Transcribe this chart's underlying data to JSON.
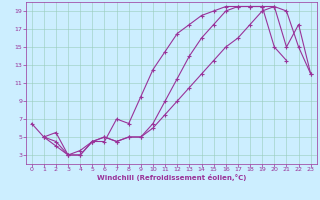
{
  "xlabel": "Windchill (Refroidissement éolien,°C)",
  "bg_color": "#cceeff",
  "grid_color": "#99ccbb",
  "line_color": "#993399",
  "xlim": [
    -0.5,
    23.5
  ],
  "ylim": [
    2,
    20
  ],
  "xticks": [
    0,
    1,
    2,
    3,
    4,
    5,
    6,
    7,
    8,
    9,
    10,
    11,
    12,
    13,
    14,
    15,
    16,
    17,
    18,
    19,
    20,
    21,
    22,
    23
  ],
  "yticks": [
    3,
    5,
    7,
    9,
    11,
    13,
    15,
    17,
    19
  ],
  "line1_x": [
    0,
    1,
    2,
    3,
    4,
    5,
    6,
    7,
    8,
    9,
    10,
    11,
    12,
    13,
    14,
    15,
    16,
    17,
    18,
    19,
    20,
    21
  ],
  "line1_y": [
    6.5,
    5.0,
    4.0,
    3.0,
    3.0,
    4.5,
    4.5,
    7.0,
    6.5,
    9.5,
    12.5,
    14.5,
    16.5,
    17.5,
    18.5,
    19.0,
    19.5,
    19.5,
    19.5,
    19.5,
    15.0,
    13.5
  ],
  "line2_x": [
    1,
    2,
    3,
    4,
    5,
    6,
    7,
    8,
    9,
    10,
    11,
    12,
    13,
    14,
    15,
    16,
    17,
    18,
    19,
    20,
    21,
    22,
    23
  ],
  "line2_y": [
    5.0,
    5.5,
    3.0,
    3.0,
    4.5,
    5.0,
    4.5,
    5.0,
    5.0,
    6.0,
    7.5,
    9.0,
    10.5,
    12.0,
    13.5,
    15.0,
    16.0,
    17.5,
    19.0,
    19.5,
    19.0,
    15.0,
    12.0
  ],
  "line3_x": [
    1,
    2,
    3,
    4,
    5,
    6,
    7,
    8,
    9,
    10,
    11,
    12,
    13,
    14,
    15,
    16,
    17,
    18,
    19,
    20,
    21,
    22,
    23
  ],
  "line3_y": [
    5.0,
    4.5,
    3.0,
    3.5,
    4.5,
    5.0,
    4.5,
    5.0,
    5.0,
    6.5,
    9.0,
    11.5,
    14.0,
    16.0,
    17.5,
    19.0,
    19.5,
    19.5,
    19.5,
    19.5,
    15.0,
    17.5,
    12.0
  ]
}
